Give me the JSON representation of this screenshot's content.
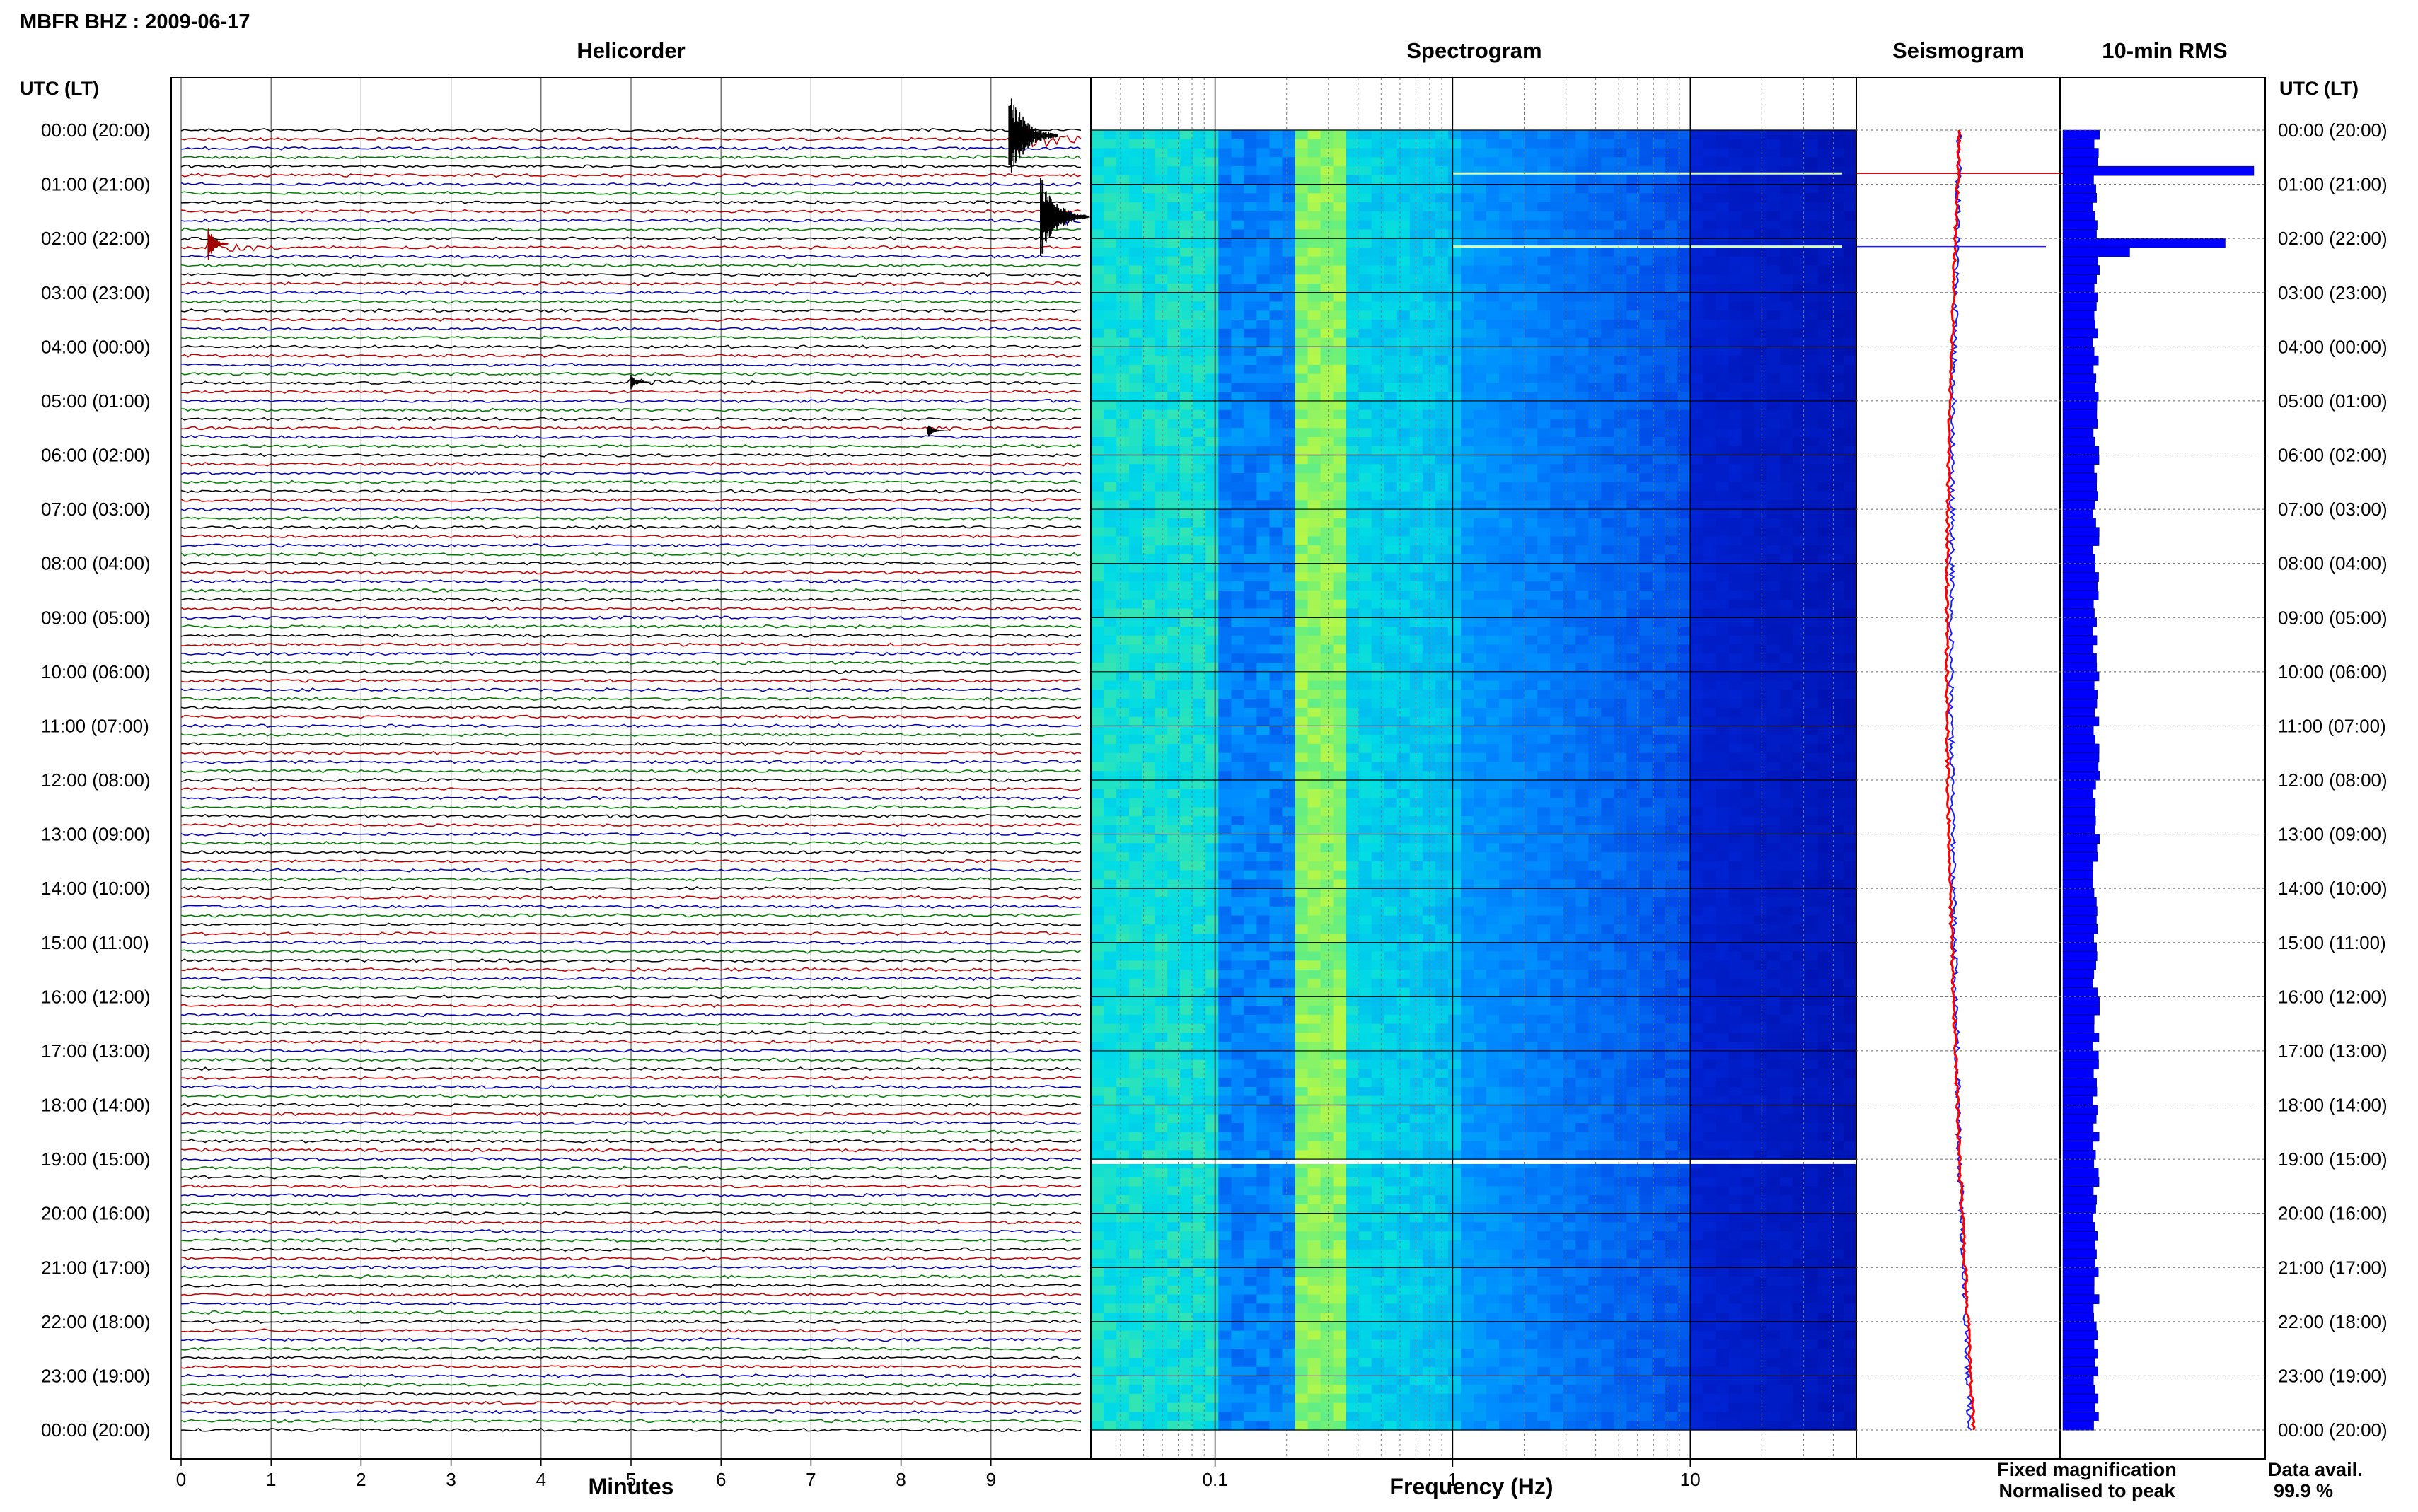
{
  "header": {
    "station_title": "MBFR BHZ : 2009-06-17",
    "left_axis_title": "UTC (LT)",
    "right_axis_title": "UTC (LT)"
  },
  "panels": {
    "helicorder": "Helicorder",
    "spectrogram": "Spectrogram",
    "seismogram": "Seismogram",
    "rms": "10-min RMS"
  },
  "axes": {
    "minutes_label": "Minutes",
    "frequency_label": "Frequency (Hz)",
    "minute_ticks": [
      "0",
      "1",
      "2",
      "3",
      "4",
      "5",
      "6",
      "7",
      "8",
      "9"
    ],
    "frequency_ticks": [
      "0.1",
      "1",
      "10"
    ]
  },
  "time_labels": [
    "00:00 (20:00)",
    "01:00 (21:00)",
    "02:00 (22:00)",
    "03:00 (23:00)",
    "04:00 (00:00)",
    "05:00 (01:00)",
    "06:00 (02:00)",
    "07:00 (03:00)",
    "08:00 (04:00)",
    "09:00 (05:00)",
    "10:00 (06:00)",
    "11:00 (07:00)",
    "12:00 (08:00)",
    "13:00 (09:00)",
    "14:00 (10:00)",
    "15:00 (11:00)",
    "16:00 (12:00)",
    "17:00 (13:00)",
    "18:00 (14:00)",
    "19:00 (15:00)",
    "20:00 (16:00)",
    "21:00 (17:00)",
    "22:00 (18:00)",
    "23:00 (19:00)",
    "00:00 (20:00)"
  ],
  "legend": {
    "fixed": "Fixed magnification",
    "normalised": "Normalised to peak",
    "fixed_color": "#1a1aff",
    "normalised_color": "#ff0000"
  },
  "availability": {
    "label": "Data avail.",
    "value": "99.9 %"
  },
  "colors": {
    "trace_cycle": [
      "#000000",
      "#c00000",
      "#0000b0",
      "#007a00"
    ],
    "rms_bar": "#0000ff",
    "grid": "#666666"
  },
  "chart_data": {
    "type": "heatmap",
    "helicorder": {
      "lines_per_hour": 6,
      "minutes_per_line": 10,
      "xlim": [
        0,
        10
      ],
      "events": [
        {
          "minute": 9.2,
          "hour": 0.1,
          "amp": 1.0
        },
        {
          "minute": 9.55,
          "hour": 1.6,
          "amp": 0.9
        },
        {
          "minute": 0.3,
          "hour": 2.1,
          "amp": 0.35
        },
        {
          "minute": 5.0,
          "hour": 4.65,
          "amp": 0.15
        },
        {
          "minute": 8.3,
          "hour": 5.55,
          "amp": 0.12
        }
      ]
    },
    "spectrogram": {
      "frequency_scale": "log",
      "xlim_hz": [
        0.03,
        50
      ],
      "gap_hour": 19.05
    },
    "seismogram": {
      "series": [
        {
          "name": "Fixed magnification",
          "color": "#1a1aff"
        },
        {
          "name": "Normalised to peak",
          "color": "#ff0000"
        }
      ]
    },
    "rms_10min": {
      "peaks": [
        {
          "hour": 0.7,
          "relative": 1.0
        },
        {
          "hour": 2.0,
          "relative": 0.85
        },
        {
          "hour": 2.2,
          "relative": 0.35
        }
      ]
    },
    "data_availability_percent": 99.9
  }
}
